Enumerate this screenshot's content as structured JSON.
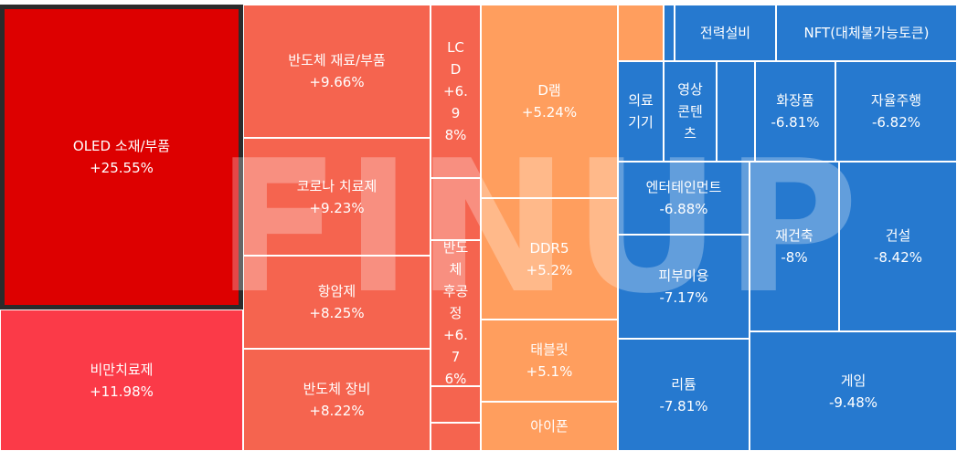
{
  "watermark": "FINUP",
  "chart_data": {
    "type": "treemap",
    "tiles": [
      {
        "label": "OLED 소재/부품",
        "value": "+25.55%",
        "change": 25.55,
        "color": "#dd0000",
        "selected": true
      },
      {
        "label": "비만치료제",
        "value": "+11.98%",
        "change": 11.98,
        "color": "#fb3a48"
      },
      {
        "label": "반도체 재료/부품",
        "value": "+9.66%",
        "change": 9.66,
        "color": "#f5644f"
      },
      {
        "label": "코로나 치료제",
        "value": "+9.23%",
        "change": 9.23,
        "color": "#f5644f"
      },
      {
        "label": "항암제",
        "value": "+8.25%",
        "change": 8.25,
        "color": "#f5644f"
      },
      {
        "label": "반도체 장비",
        "value": "+8.22%",
        "change": 8.22,
        "color": "#f5644f"
      },
      {
        "label": "LCD",
        "value": "+6.98%",
        "change": 6.98,
        "color": "#f5644f"
      },
      {
        "label": "",
        "value": "",
        "color": "#f5644f"
      },
      {
        "label": "반도체 후공정",
        "value": "+6.76%",
        "change": 6.76,
        "color": "#f5644f"
      },
      {
        "label": "",
        "value": "",
        "color": "#f5644f"
      },
      {
        "label": "",
        "value": "",
        "color": "#f5644f"
      },
      {
        "label": "D램",
        "value": "+5.24%",
        "change": 5.24,
        "color": "#ff9e5e"
      },
      {
        "label": "DDR5",
        "value": "+5.2%",
        "change": 5.2,
        "color": "#ff9e5e"
      },
      {
        "label": "태블릿",
        "value": "+5.1%",
        "change": 5.1,
        "color": "#ff9e5e"
      },
      {
        "label": "아이폰",
        "value": "",
        "color": "#ff9e5e"
      },
      {
        "label": "",
        "value": "",
        "color": "#ff9e5e"
      },
      {
        "label": "",
        "value": "",
        "color": "#2679cf"
      },
      {
        "label": "전력설비",
        "value": "",
        "color": "#2679cf"
      },
      {
        "label": "NFT(대체불가능토큰)",
        "value": "",
        "color": "#2679cf"
      },
      {
        "label": "의료기기",
        "value": "",
        "color": "#2679cf"
      },
      {
        "label": "영상콘텐츠",
        "value": "",
        "color": "#2679cf"
      },
      {
        "label": "",
        "value": "",
        "color": "#2679cf"
      },
      {
        "label": "화장품",
        "value": "-6.81%",
        "change": -6.81,
        "color": "#2679cf"
      },
      {
        "label": "자율주행",
        "value": "-6.82%",
        "change": -6.82,
        "color": "#2679cf"
      },
      {
        "label": "엔터테인먼트",
        "value": "-6.88%",
        "change": -6.88,
        "color": "#2679cf"
      },
      {
        "label": "피부미용",
        "value": "-7.17%",
        "change": -7.17,
        "color": "#2679cf"
      },
      {
        "label": "재건축",
        "value": "-8%",
        "change": -8,
        "color": "#2679cf"
      },
      {
        "label": "건설",
        "value": "-8.42%",
        "change": -8.42,
        "color": "#2679cf"
      },
      {
        "label": "리튬",
        "value": "-7.81%",
        "change": -7.81,
        "color": "#2679cf"
      },
      {
        "label": "게임",
        "value": "-9.48%",
        "change": -9.48,
        "color": "#2679cf"
      }
    ]
  }
}
